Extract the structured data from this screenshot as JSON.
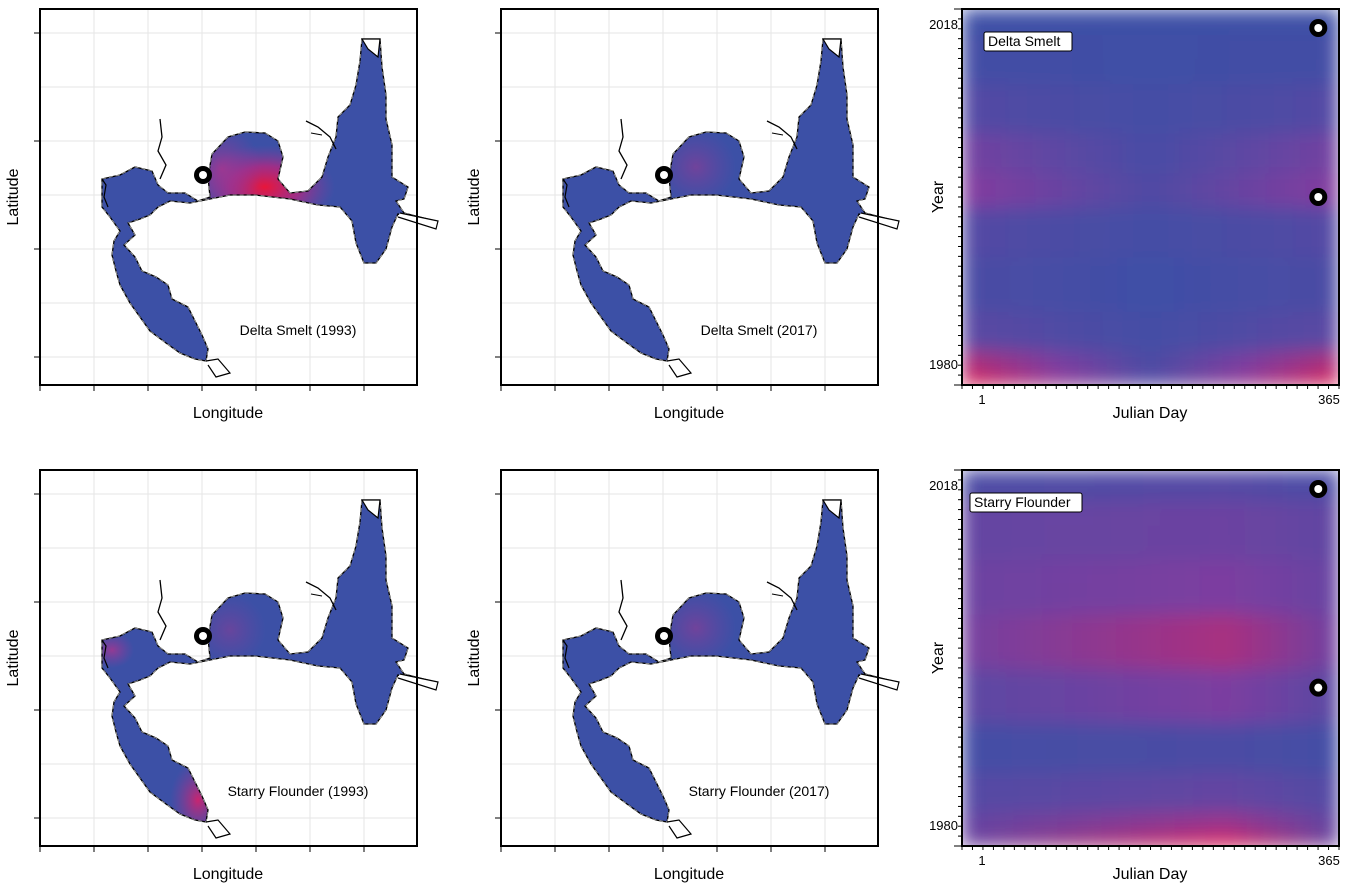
{
  "colors": {
    "low": "#3c50a6",
    "mid": "#8c3a9e",
    "high": "#e8163a",
    "marker_ring": "#000000",
    "marker_center": "#ffffff",
    "land_outline": "#000000"
  },
  "maps": [
    {
      "id": "map-delta-smelt-1993",
      "label": "Delta Smelt (1993)",
      "xlabel": "Longitude",
      "ylabel": "Latitude",
      "hotspot": "suisun"
    },
    {
      "id": "map-delta-smelt-2017",
      "label": "Delta Smelt (2017)",
      "xlabel": "Longitude",
      "ylabel": "Latitude",
      "hotspot": "faint"
    },
    {
      "id": "map-starry-flounder-1993",
      "label": "Starry Flounder (1993)",
      "xlabel": "Longitude",
      "ylabel": "Latitude",
      "hotspot": "south"
    },
    {
      "id": "map-starry-flounder-2017",
      "label": "Starry Flounder (2017)",
      "xlabel": "Longitude",
      "ylabel": "Latitude",
      "hotspot": "faint"
    }
  ],
  "chart_data": [
    {
      "type": "heatmap",
      "legend": "Delta Smelt",
      "xlabel": "Julian Day",
      "ylabel": "Year",
      "xlim": [
        1,
        365
      ],
      "ylim": [
        1980,
        2018
      ],
      "x_ticks": [
        "1",
        "365"
      ],
      "y_ticks": [
        "1980",
        "2018"
      ],
      "markers": [
        {
          "x": 345,
          "y": 2018
        },
        {
          "x": 345,
          "y": 1999
        }
      ],
      "intensity_rows": [
        {
          "year": 1980,
          "edge": 1.0,
          "center": 0.15
        },
        {
          "year": 1982,
          "edge": 0.7,
          "center": 0.1
        },
        {
          "year": 1985,
          "edge": 0.2,
          "center": 0.05
        },
        {
          "year": 1990,
          "edge": 0.1,
          "center": 0.02
        },
        {
          "year": 1996,
          "edge": 0.15,
          "center": 0.05
        },
        {
          "year": 2000,
          "edge": 0.45,
          "center": 0.12
        },
        {
          "year": 2003,
          "edge": 0.35,
          "center": 0.08
        },
        {
          "year": 2008,
          "edge": 0.15,
          "center": 0.05
        },
        {
          "year": 2013,
          "edge": 0.05,
          "center": 0.02
        },
        {
          "year": 2018,
          "edge": 0.0,
          "center": 0.0
        }
      ]
    },
    {
      "type": "heatmap",
      "legend": "Starry Flounder",
      "xlabel": "Julian Day",
      "ylabel": "Year",
      "xlim": [
        1,
        365
      ],
      "ylim": [
        1980,
        2018
      ],
      "x_ticks": [
        "1",
        "365"
      ],
      "y_ticks": [
        "1980",
        "2018"
      ],
      "markers": [
        {
          "x": 345,
          "y": 2018
        },
        {
          "x": 345,
          "y": 1996
        }
      ],
      "intensity_rows": [
        {
          "year": 1980,
          "edge": 0.3,
          "center": 1.0
        },
        {
          "year": 1982,
          "edge": 0.25,
          "center": 0.6
        },
        {
          "year": 1985,
          "edge": 0.15,
          "center": 0.25
        },
        {
          "year": 1990,
          "edge": 0.05,
          "center": 0.1
        },
        {
          "year": 1995,
          "edge": 0.2,
          "center": 0.4
        },
        {
          "year": 2001,
          "edge": 0.35,
          "center": 0.65
        },
        {
          "year": 2006,
          "edge": 0.3,
          "center": 0.4
        },
        {
          "year": 2012,
          "edge": 0.25,
          "center": 0.3
        },
        {
          "year": 2018,
          "edge": 0.1,
          "center": 0.15
        }
      ]
    }
  ]
}
